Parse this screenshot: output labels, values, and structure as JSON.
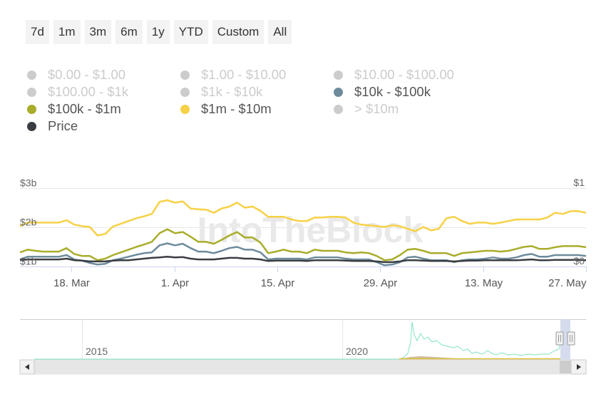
{
  "range_buttons": [
    "7d",
    "1m",
    "3m",
    "6m",
    "1y",
    "YTD",
    "Custom",
    "All"
  ],
  "legend": [
    {
      "label": "$0.00 - $1.00",
      "color": "#cccccc",
      "active": false
    },
    {
      "label": "$1.00 - $10.00",
      "color": "#cccccc",
      "active": false
    },
    {
      "label": "$10.00 - $100.00",
      "color": "#cccccc",
      "active": false
    },
    {
      "label": "$100.00 - $1k",
      "color": "#cccccc",
      "active": false
    },
    {
      "label": "$1k - $10k",
      "color": "#cccccc",
      "active": false
    },
    {
      "label": "$10k - $100k",
      "color": "#6e8b9c",
      "active": true
    },
    {
      "label": "$100k - $1m",
      "color": "#a8ad2a",
      "active": true
    },
    {
      "label": "$1m - $10m",
      "color": "#f7d147",
      "active": true
    },
    {
      "label": "> $10m",
      "color": "#cccccc",
      "active": false
    },
    {
      "label": "Price",
      "color": "#3a3d42",
      "active": true
    }
  ],
  "watermark": "IntoTheBlock",
  "navigator": {
    "year_labels": [
      "2015",
      "2020"
    ]
  },
  "chart_data": {
    "type": "line",
    "x_start": "2024-03-11",
    "x_end": "2024-05-27",
    "x_ticks": [
      {
        "date": "2024-03-18",
        "label": "18. Mar"
      },
      {
        "date": "2024-04-01",
        "label": "1. Apr"
      },
      {
        "date": "2024-04-15",
        "label": "15. Apr"
      },
      {
        "date": "2024-04-29",
        "label": "29. Apr"
      },
      {
        "date": "2024-05-13",
        "label": "13. May"
      },
      {
        "date": "2024-05-27",
        "label": "27. May"
      }
    ],
    "y_left": {
      "ticks": [
        "$1b",
        "$2b",
        "$3b"
      ],
      "range": [
        1,
        3
      ]
    },
    "y_right": {
      "ticks": [
        "$0",
        "$1"
      ],
      "range": [
        0,
        1
      ]
    },
    "series": [
      {
        "name": "$1m - $10m",
        "axis": "left",
        "color": "#f7d147",
        "values": [
          2.03,
          2.12,
          2.12,
          2.12,
          2.12,
          2.12,
          2.18,
          2.07,
          2.03,
          2.01,
          1.79,
          1.83,
          2.02,
          2.09,
          2.16,
          2.23,
          2.28,
          2.34,
          2.65,
          2.69,
          2.63,
          2.66,
          2.48,
          2.46,
          2.45,
          2.37,
          2.48,
          2.53,
          2.63,
          2.5,
          2.53,
          2.42,
          2.27,
          2.27,
          2.27,
          2.2,
          2.16,
          2.16,
          2.25,
          2.25,
          2.27,
          2.27,
          2.25,
          2.12,
          2.07,
          2.05,
          2.03,
          2.01,
          2.05,
          2.03,
          1.96,
          1.9,
          2.01,
          1.92,
          1.96,
          2.23,
          2.27,
          2.16,
          2.09,
          2.12,
          2.12,
          2.09,
          2.12,
          2.16,
          2.2,
          2.2,
          2.2,
          2.2,
          2.25,
          2.37,
          2.34,
          2.41,
          2.41,
          2.37
        ]
      },
      {
        "name": "$100k - $1m",
        "axis": "left",
        "color": "#a8ad2a",
        "values": [
          1.36,
          1.43,
          1.4,
          1.38,
          1.38,
          1.38,
          1.47,
          1.32,
          1.27,
          1.27,
          1.16,
          1.2,
          1.29,
          1.36,
          1.43,
          1.5,
          1.56,
          1.63,
          1.85,
          1.95,
          1.85,
          1.88,
          1.76,
          1.63,
          1.63,
          1.58,
          1.68,
          1.79,
          1.88,
          1.74,
          1.74,
          1.61,
          1.34,
          1.38,
          1.43,
          1.38,
          1.38,
          1.34,
          1.43,
          1.4,
          1.4,
          1.4,
          1.36,
          1.34,
          1.36,
          1.34,
          1.27,
          1.16,
          1.18,
          1.29,
          1.43,
          1.45,
          1.4,
          1.34,
          1.34,
          1.34,
          1.27,
          1.34,
          1.36,
          1.38,
          1.4,
          1.4,
          1.38,
          1.4,
          1.45,
          1.5,
          1.52,
          1.45,
          1.45,
          1.49,
          1.52,
          1.52,
          1.52,
          1.49
        ]
      },
      {
        "name": "$10k - $100k",
        "axis": "left",
        "color": "#6e8b9c",
        "values": [
          1.18,
          1.25,
          1.25,
          1.25,
          1.25,
          1.25,
          1.29,
          1.18,
          1.15,
          1.09,
          1.05,
          1.07,
          1.16,
          1.2,
          1.25,
          1.3,
          1.34,
          1.36,
          1.54,
          1.59,
          1.54,
          1.58,
          1.47,
          1.38,
          1.38,
          1.34,
          1.4,
          1.47,
          1.5,
          1.43,
          1.43,
          1.36,
          1.18,
          1.2,
          1.2,
          1.2,
          1.2,
          1.18,
          1.23,
          1.23,
          1.23,
          1.23,
          1.2,
          1.18,
          1.18,
          1.18,
          1.11,
          1.03,
          1.05,
          1.11,
          1.23,
          1.25,
          1.2,
          1.16,
          1.16,
          1.16,
          1.11,
          1.16,
          1.18,
          1.18,
          1.2,
          1.23,
          1.2,
          1.2,
          1.23,
          1.29,
          1.32,
          1.25,
          1.25,
          1.29,
          1.29,
          1.29,
          1.29,
          1.27
        ]
      },
      {
        "name": "Price",
        "axis": "left",
        "color": "#3a3d42",
        "values": [
          1.16,
          1.18,
          1.18,
          1.18,
          1.18,
          1.18,
          1.2,
          1.16,
          1.15,
          1.13,
          1.13,
          1.13,
          1.15,
          1.16,
          1.16,
          1.18,
          1.2,
          1.22,
          1.23,
          1.25,
          1.23,
          1.24,
          1.2,
          1.18,
          1.18,
          1.18,
          1.2,
          1.22,
          1.22,
          1.2,
          1.2,
          1.18,
          1.14,
          1.15,
          1.15,
          1.15,
          1.15,
          1.14,
          1.16,
          1.16,
          1.16,
          1.16,
          1.15,
          1.14,
          1.14,
          1.14,
          1.13,
          1.11,
          1.11,
          1.13,
          1.16,
          1.16,
          1.15,
          1.14,
          1.14,
          1.14,
          1.13,
          1.14,
          1.15,
          1.15,
          1.16,
          1.16,
          1.16,
          1.16,
          1.16,
          1.17,
          1.18,
          1.16,
          1.16,
          1.17,
          1.17,
          1.17,
          1.17,
          1.16
        ]
      }
    ],
    "grid": true,
    "legend_position": "top"
  }
}
